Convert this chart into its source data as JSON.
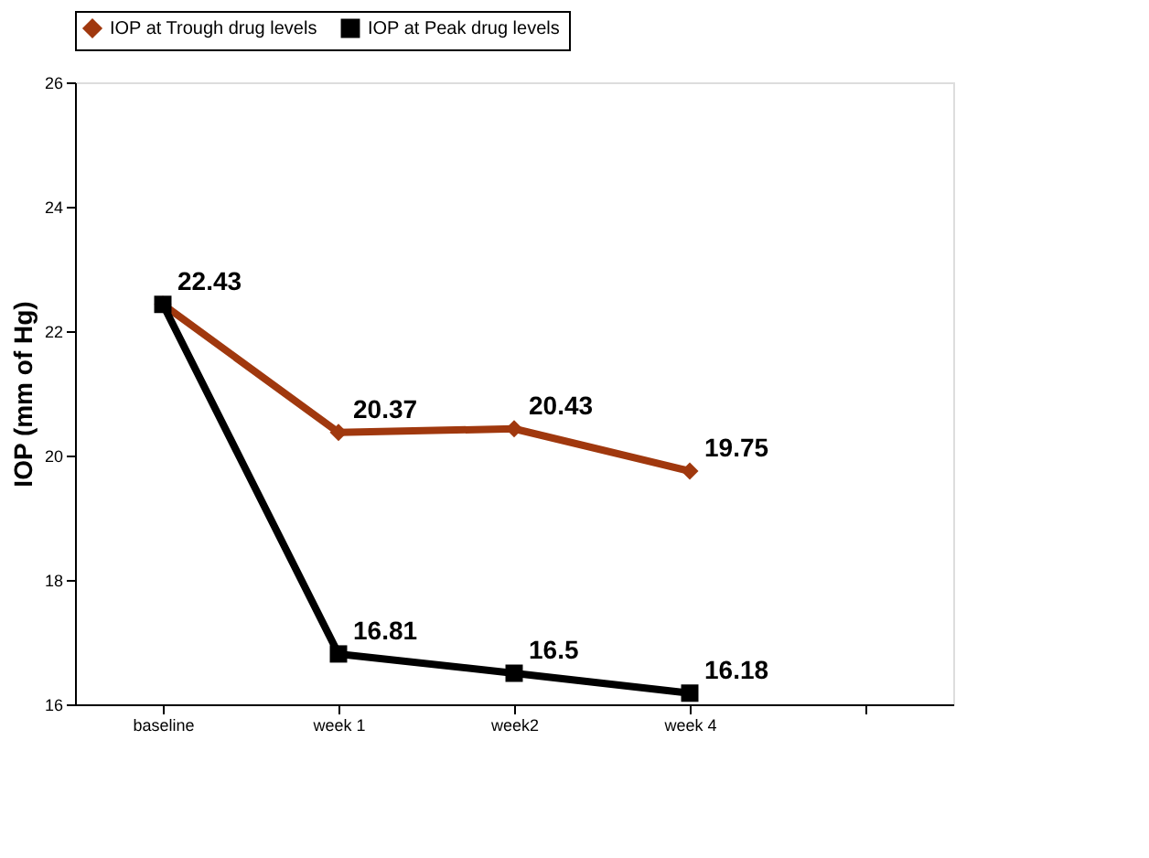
{
  "chart_data": {
    "type": "line",
    "ylabel": "IOP (mm of Hg)",
    "categories": [
      "baseline",
      "week 1",
      "week2",
      "week 4",
      null
    ],
    "series": [
      {
        "name": "IOP at Trough drug levels",
        "color": "#a0380e",
        "marker": "diamond",
        "values": [
          22.43,
          20.37,
          20.43,
          19.75,
          null
        ],
        "value_labels": [
          null,
          "20.37",
          "20.43",
          "19.75",
          null
        ]
      },
      {
        "name": "IOP at Peak drug levels",
        "color": "#000000",
        "marker": "square",
        "values": [
          22.43,
          16.81,
          16.5,
          16.18,
          null
        ],
        "value_labels": [
          "22.43",
          "16.81",
          "16.5",
          "16.18",
          null
        ]
      }
    ],
    "ylim": [
      16,
      26
    ],
    "yticks": [
      16,
      18,
      20,
      22,
      24,
      26
    ],
    "grid": false,
    "legend": "top",
    "line_style": "solid"
  }
}
